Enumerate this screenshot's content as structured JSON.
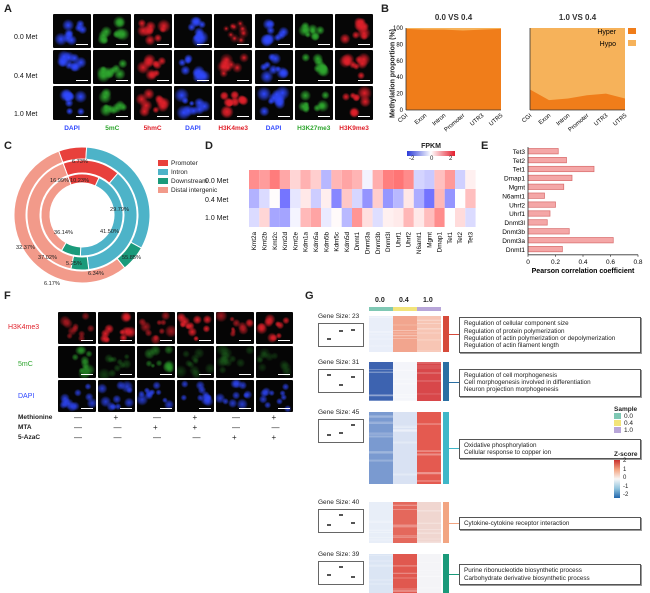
{
  "panels": {
    "A": {
      "label": "A",
      "rows": [
        "0.0 Met",
        "0.4 Met",
        "1.0 Met"
      ],
      "stains": [
        {
          "name": "DAPI",
          "color": "#2f48ff"
        },
        {
          "name": "5mC",
          "color": "#2ea62e"
        },
        {
          "name": "5hmC",
          "color": "#e0202a"
        },
        {
          "name": "DAPI",
          "color": "#2f48ff"
        },
        {
          "name": "H3K4me3",
          "color": "#e0202a"
        },
        {
          "name": "DAPI",
          "color": "#2f48ff"
        },
        {
          "name": "H3K27me3",
          "color": "#2ea62e"
        },
        {
          "name": "H3K9me3",
          "color": "#e0202a"
        }
      ]
    },
    "B": {
      "label": "B",
      "ylabel": "Methylation proportion (%)",
      "yticks": [
        "0",
        "20",
        "40",
        "60",
        "80",
        "100"
      ],
      "xticks": [
        "CGI",
        "Exon",
        "Intron",
        "Promoter",
        "UTR3",
        "UTR5"
      ],
      "charts": [
        {
          "title": "0.0 VS 0.4"
        },
        {
          "title": "1.0 VS 0.4"
        }
      ],
      "legend": [
        {
          "name": "Hyper",
          "color": "#f07d1a"
        },
        {
          "name": "Hypo",
          "color": "#f6b25a"
        }
      ]
    },
    "C": {
      "label": "C",
      "legend": [
        {
          "name": "Promoter",
          "color": "#e8403c"
        },
        {
          "name": "Intron",
          "color": "#4db3c8"
        },
        {
          "name": "Downstream",
          "color": "#1a9a7a"
        },
        {
          "name": "Distal intergenic",
          "color": "#f29a8a"
        }
      ],
      "labels": [
        "6.73%",
        "10.23%",
        "16.99%",
        "29.79%",
        "32.37%",
        "36.14%",
        "41.50%",
        "37.02%",
        "55.85%",
        "5.25%",
        "6.17%",
        "6.34%"
      ]
    },
    "D": {
      "label": "D",
      "legend_title": "FPKM",
      "legend_ticks": [
        "-2",
        "0",
        "2"
      ],
      "rows": [
        "0.0 Met",
        "0.4 Met",
        "1.0 Met"
      ],
      "genes": [
        "Kmt2a",
        "Kmt2b",
        "Kmt2c",
        "Kmt2d",
        "Kmt2e",
        "Kdm1a",
        "Kdm5a",
        "Kdm5b",
        "Kdm5c",
        "Kdm5d",
        "Dnmt1",
        "Dnmt3a",
        "Dnmt3b",
        "Dnmt3l",
        "Uhrf1",
        "Uhrf2",
        "N6amt1",
        "Mgmt",
        "Dmap1",
        "Tet1",
        "Tet2",
        "Tet3"
      ]
    },
    "E": {
      "label": "E",
      "xlabel": "Pearson correlation coefficient",
      "xticks": [
        "0",
        "0.2",
        "0.4",
        "0.6",
        "0.8"
      ]
    },
    "F": {
      "label": "F",
      "rows": [
        "H3K4me3",
        "5mC",
        "DAPI"
      ],
      "treatments": [
        {
          "name": "Methionine",
          "values": [
            "—",
            "+",
            "—",
            "+",
            "—",
            "+"
          ]
        },
        {
          "name": "MTA",
          "values": [
            "—",
            "—",
            "+",
            "+",
            "—",
            "—"
          ]
        },
        {
          "name": "5-AzaC",
          "values": [
            "—",
            "—",
            "—",
            "—",
            "+",
            "+"
          ]
        }
      ]
    },
    "G": {
      "label": "G",
      "columns": [
        "0.0",
        "0.4",
        "1.0"
      ],
      "clusters": [
        {
          "size_label": "Gene Size: 23",
          "terms": [
            "Regulation of cellular component size",
            "Regulation of protein polymerization",
            "Regulation of actin polymerization or depolymerization",
            "Regulation of actin filament length"
          ]
        },
        {
          "size_label": "Gene Size: 31",
          "terms": [
            "Regulation of cell morphogenesis",
            "Cell morphogenesis involved in differentiation",
            "Neuron projection morphogenesis"
          ]
        },
        {
          "size_label": "Gene Size: 45",
          "terms": [
            "Oxidative phosphorylation",
            "Cellular response to copper ion"
          ]
        },
        {
          "size_label": "Gene Size: 40",
          "terms": [
            "Cytokine-cytokine receptor interaction"
          ]
        },
        {
          "size_label": "Gene Size: 39",
          "terms": [
            "Purine ribonucleotide biosynthetic process",
            "Carbohydrate derivative biosynthetic process"
          ]
        }
      ],
      "sample_legend": {
        "title": "Sample",
        "items": [
          "0.0",
          "0.4",
          "1.0"
        ]
      },
      "zscore_legend": {
        "title": "Z-score",
        "ticks": [
          "2",
          "1",
          "0",
          "-1",
          "-2"
        ]
      }
    }
  },
  "chart_data": [
    {
      "type": "bar",
      "title": "",
      "categories": [
        "Tet3",
        "Tet2",
        "Tet1",
        "Dmap1",
        "Mgmt",
        "N6amt1",
        "Uhrf2",
        "Uhrf1",
        "Dnmt3l",
        "Dnmt3b",
        "Dnmt3a",
        "Dnmt1"
      ],
      "values": [
        0.22,
        0.28,
        0.48,
        0.32,
        0.26,
        0.12,
        0.2,
        0.16,
        0.14,
        0.3,
        0.62,
        0.25
      ],
      "xlabel": "Pearson correlation coefficient",
      "ylabel": "",
      "xlim": [
        0,
        0.8
      ],
      "orientation": "horizontal"
    }
  ]
}
